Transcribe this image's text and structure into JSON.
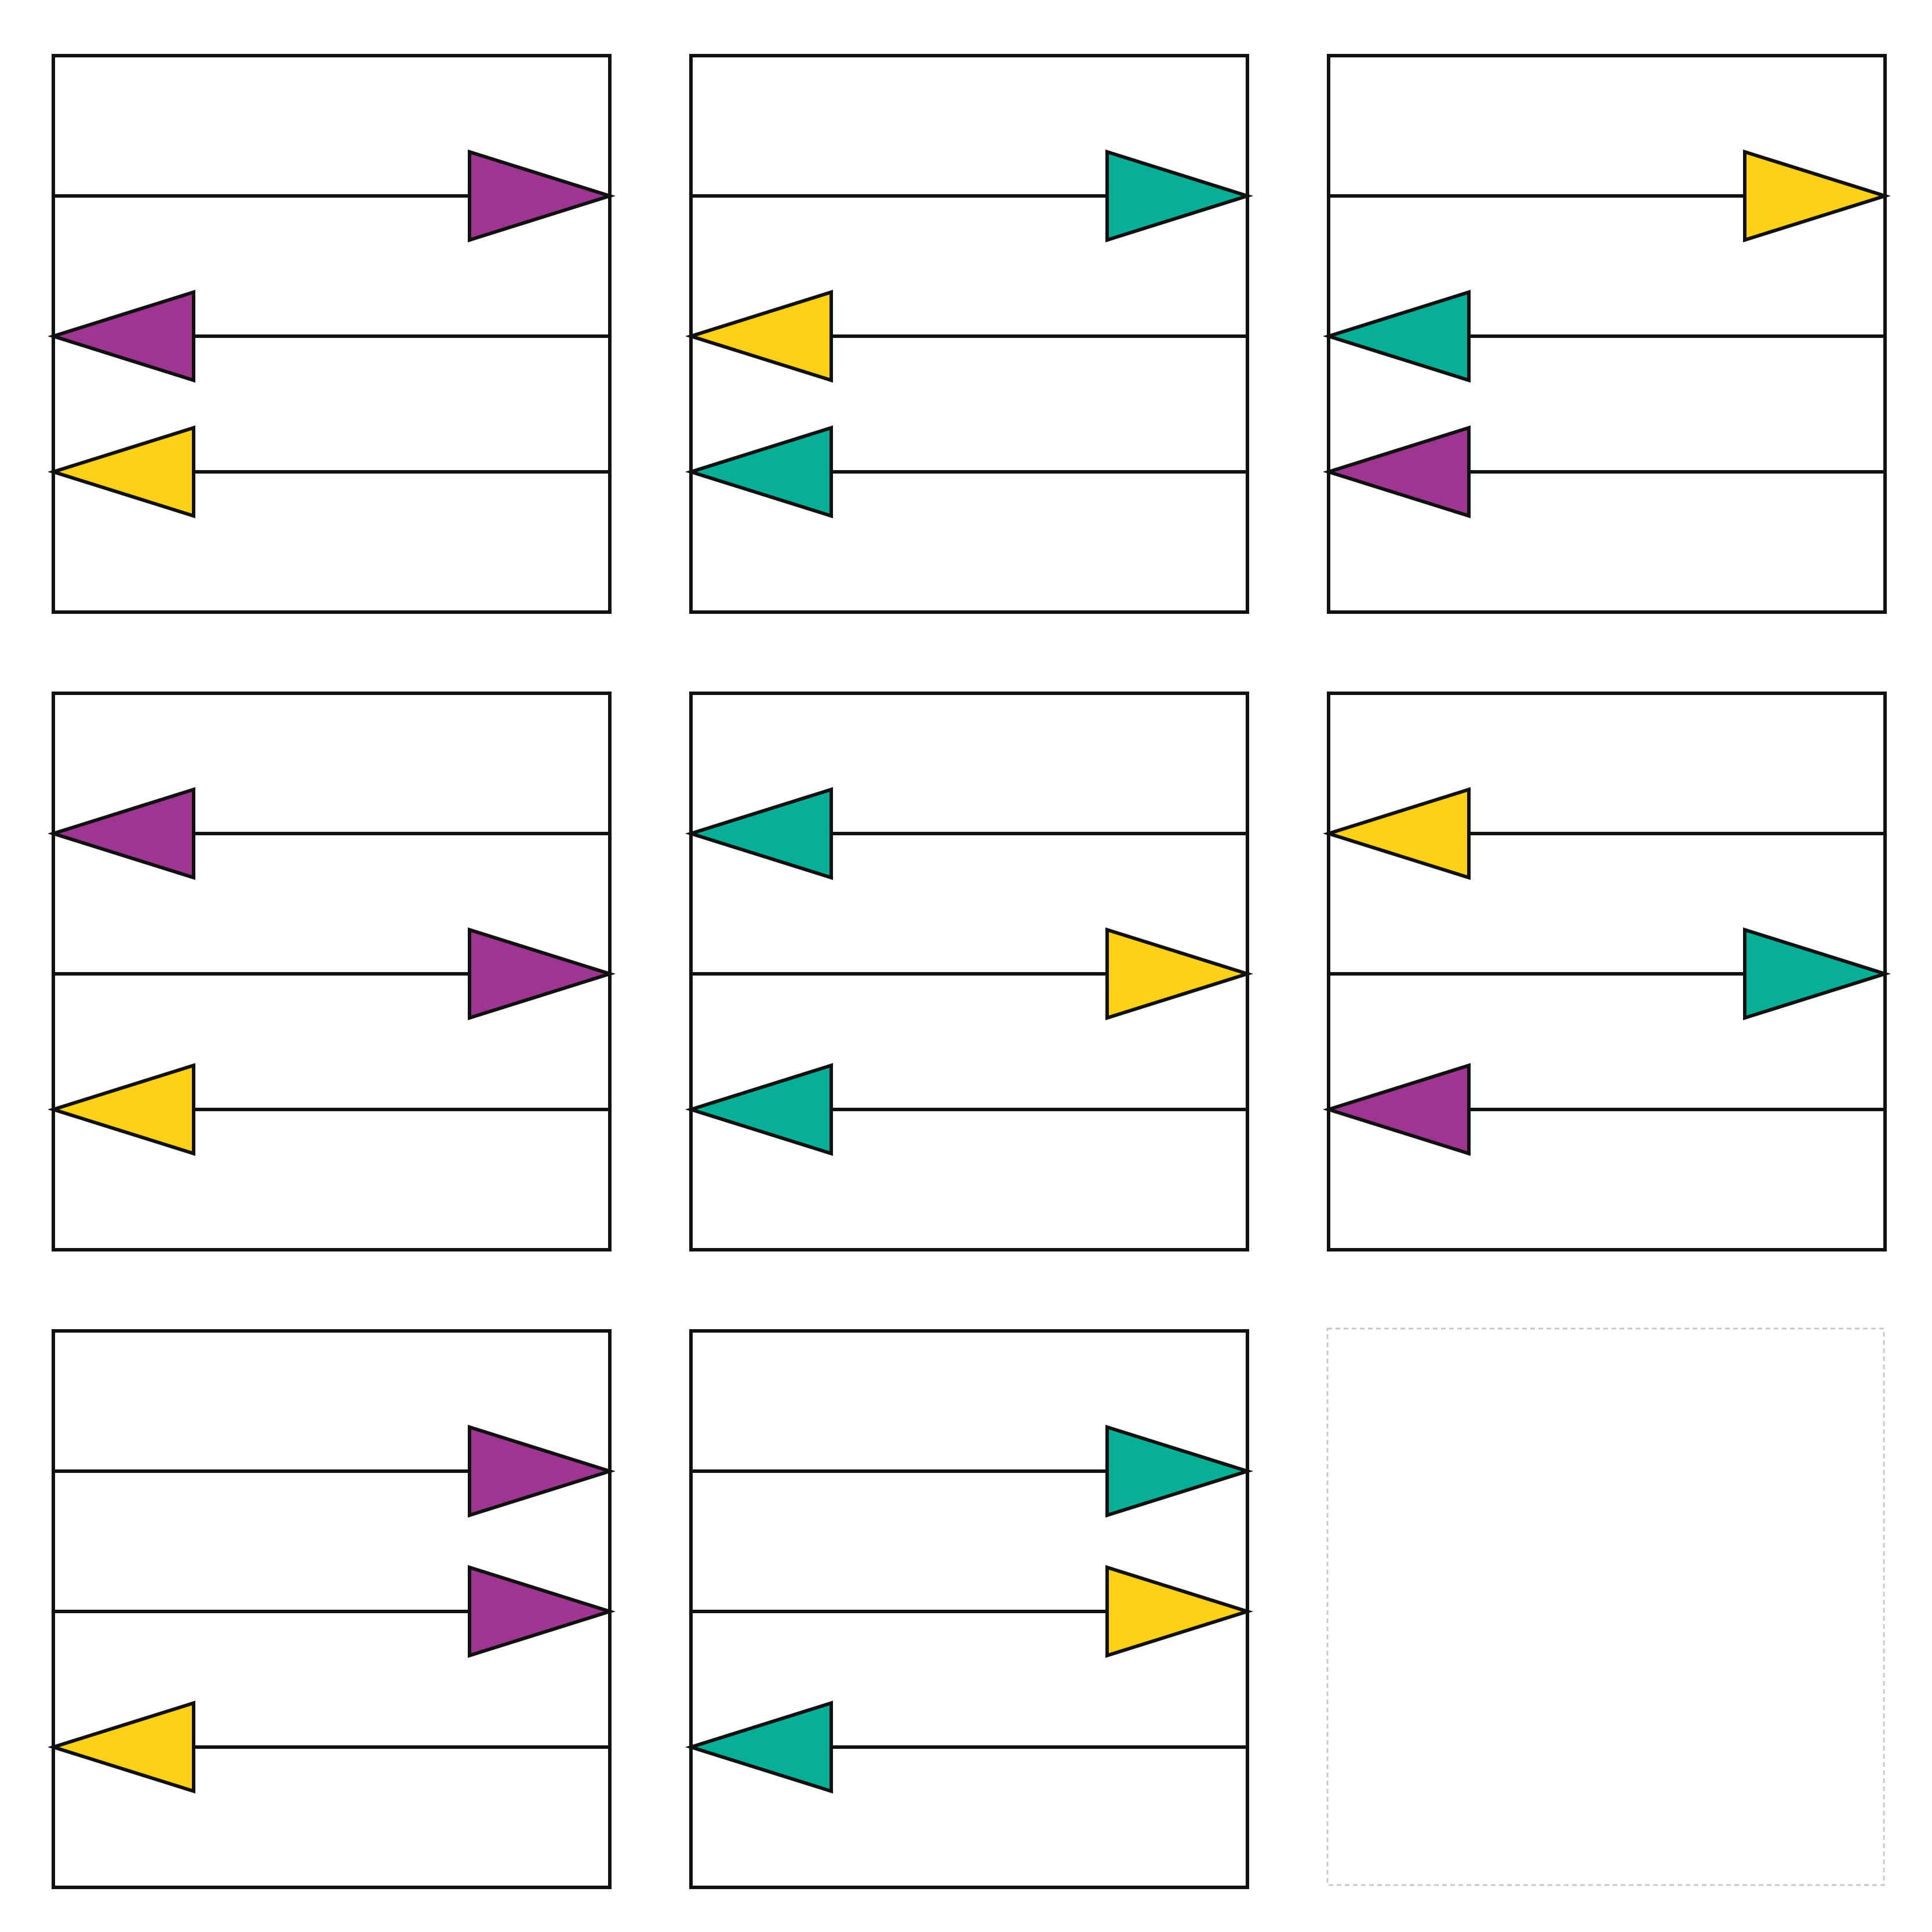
{
  "colors": {
    "purple": "#9E3591",
    "teal": "#08AE96",
    "yellow": "#FDD01A",
    "stroke": "#111111",
    "placeholder": "#C8C8C8",
    "background": "#FFFFFF"
  },
  "grid": {
    "rows": 3,
    "cols": 3
  },
  "panels": [
    {
      "id": "panel-1",
      "arrows": [
        {
          "direction": "right",
          "color": "purple"
        },
        {
          "direction": "left",
          "color": "purple"
        },
        {
          "direction": "left",
          "color": "yellow"
        }
      ]
    },
    {
      "id": "panel-2",
      "arrows": [
        {
          "direction": "right",
          "color": "teal"
        },
        {
          "direction": "left",
          "color": "yellow"
        },
        {
          "direction": "left",
          "color": "teal"
        }
      ]
    },
    {
      "id": "panel-3",
      "arrows": [
        {
          "direction": "right",
          "color": "yellow"
        },
        {
          "direction": "left",
          "color": "teal"
        },
        {
          "direction": "left",
          "color": "purple"
        }
      ]
    },
    {
      "id": "panel-4",
      "arrows": [
        {
          "direction": "left",
          "color": "purple"
        },
        {
          "direction": "right",
          "color": "purple"
        },
        {
          "direction": "left",
          "color": "yellow"
        }
      ]
    },
    {
      "id": "panel-5",
      "arrows": [
        {
          "direction": "left",
          "color": "teal"
        },
        {
          "direction": "right",
          "color": "yellow"
        },
        {
          "direction": "left",
          "color": "teal"
        }
      ]
    },
    {
      "id": "panel-6",
      "arrows": [
        {
          "direction": "left",
          "color": "yellow"
        },
        {
          "direction": "right",
          "color": "teal"
        },
        {
          "direction": "left",
          "color": "purple"
        }
      ]
    },
    {
      "id": "panel-7",
      "arrows": [
        {
          "direction": "right",
          "color": "purple"
        },
        {
          "direction": "right",
          "color": "purple"
        },
        {
          "direction": "left",
          "color": "yellow"
        }
      ]
    },
    {
      "id": "panel-8",
      "arrows": [
        {
          "direction": "right",
          "color": "teal"
        },
        {
          "direction": "right",
          "color": "yellow"
        },
        {
          "direction": "left",
          "color": "teal"
        }
      ]
    },
    {
      "id": "panel-9",
      "empty": true,
      "arrows": []
    }
  ]
}
